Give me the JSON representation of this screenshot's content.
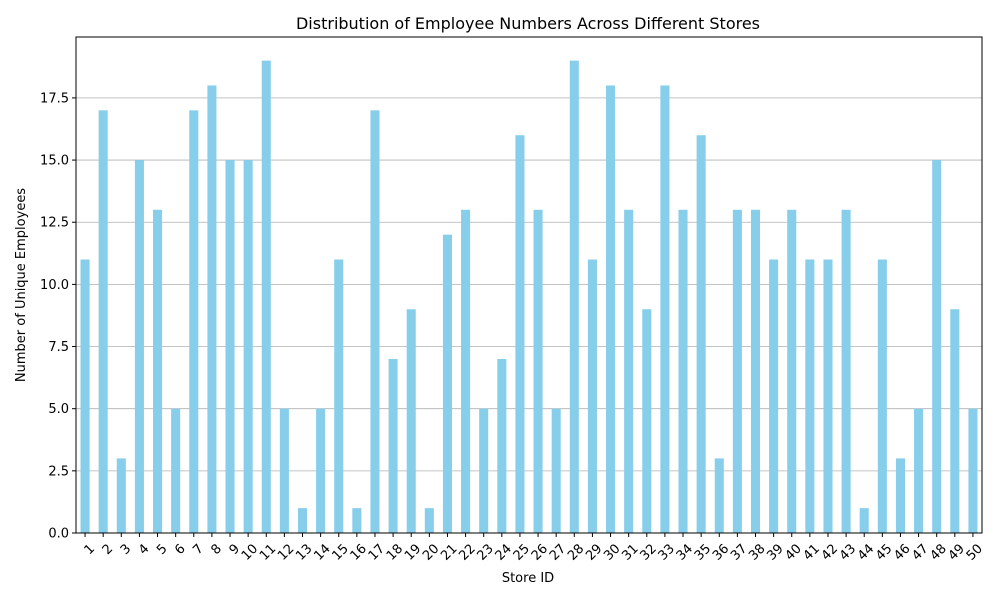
{
  "chart_data": {
    "type": "bar",
    "title": "Distribution of Employee Numbers Across Different Stores",
    "xlabel": "Store ID",
    "ylabel": "Number of Unique Employees",
    "ylim": [
      0,
      19.95
    ],
    "yticks": [
      "0.0",
      "2.5",
      "5.0",
      "7.5",
      "10.0",
      "12.5",
      "15.0",
      "17.5"
    ],
    "ytick_values": [
      0,
      2.5,
      5,
      7.5,
      10,
      12.5,
      15,
      17.5
    ],
    "grid": "y",
    "bar_color": "#87ceeb",
    "grid_color": "#b0b0b0",
    "categories": [
      "1",
      "2",
      "3",
      "4",
      "5",
      "6",
      "7",
      "8",
      "9",
      "10",
      "11",
      "12",
      "13",
      "14",
      "15",
      "16",
      "17",
      "18",
      "19",
      "20",
      "21",
      "22",
      "23",
      "24",
      "25",
      "26",
      "27",
      "28",
      "29",
      "30",
      "31",
      "32",
      "33",
      "34",
      "35",
      "36",
      "37",
      "38",
      "39",
      "40",
      "41",
      "42",
      "43",
      "44",
      "45",
      "46",
      "47",
      "48",
      "49",
      "50"
    ],
    "values": [
      11,
      17,
      3,
      15,
      13,
      5,
      17,
      18,
      15,
      15,
      19,
      5,
      1,
      5,
      11,
      1,
      17,
      7,
      9,
      1,
      12,
      13,
      5,
      7,
      16,
      13,
      5,
      19,
      11,
      18,
      13,
      9,
      18,
      13,
      16,
      3,
      13,
      13,
      11,
      13,
      11,
      11,
      13,
      1,
      11,
      3,
      5,
      15,
      9,
      5
    ]
  }
}
